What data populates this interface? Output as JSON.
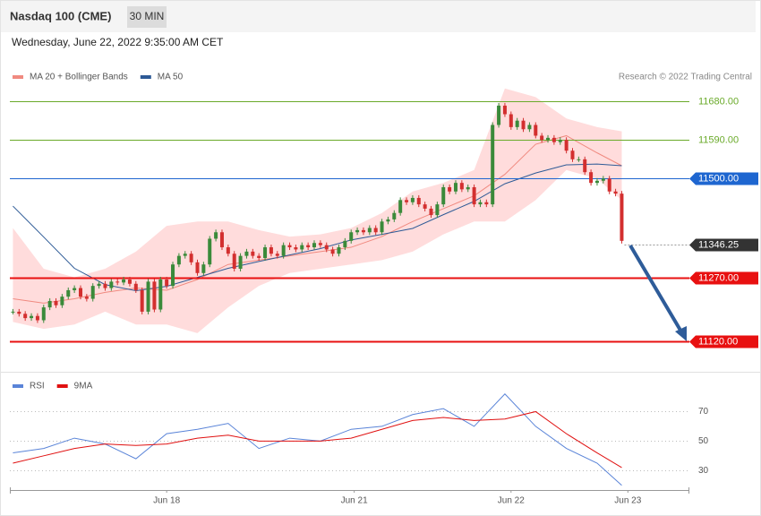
{
  "chart_data": {
    "type": "candlestick",
    "title": "Nasdaq 100 (CME)",
    "timeframe": "30 MIN",
    "subtitle": "Wednesday, June 22, 2022 9:35:00 AM CET",
    "credit": "Research © 2022 Trading Central",
    "close": [
      11190,
      11185,
      11175,
      11180,
      11170,
      11200,
      11215,
      11205,
      11225,
      11240,
      11245,
      11225,
      11220,
      11250,
      11255,
      11245,
      11260,
      11258,
      11265,
      11255,
      11240,
      11190,
      11260,
      11195,
      11265,
      11250,
      11300,
      11320,
      11325,
      11305,
      11280,
      11300,
      11360,
      11375,
      11340,
      11325,
      11290,
      11320,
      11330,
      11320,
      11315,
      11340,
      11325,
      11320,
      11345,
      11340,
      11335,
      11345,
      11340,
      11350,
      11345,
      11335,
      11325,
      11340,
      11355,
      11375,
      11380,
      11375,
      11385,
      11375,
      11400,
      11405,
      11420,
      11450,
      11445,
      11455,
      11440,
      11430,
      11415,
      11440,
      11480,
      11470,
      11490,
      11475,
      11480,
      11440,
      11445,
      11440,
      11625,
      11670,
      11650,
      11620,
      11635,
      11615,
      11625,
      11600,
      11590,
      11595,
      11585,
      11590,
      11565,
      11545,
      11545,
      11515,
      11490,
      11495,
      11500,
      11470,
      11465,
      11355
    ],
    "up_color": "#3a8a3a",
    "down_color": "#d32f2f",
    "xlim": [
      -0.5,
      110
    ],
    "xticks": [
      {
        "value": 25,
        "label": "Jun 18"
      },
      {
        "value": 55.5,
        "label": "Jun 21"
      },
      {
        "value": 81,
        "label": "Jun 22"
      },
      {
        "value": 100,
        "label": "Jun 23"
      }
    ],
    "ylim": [
      11050,
      11770
    ],
    "levels": [
      {
        "value": 11680,
        "label": "11680.00",
        "color": "#6aaa2a",
        "style": "solid",
        "tag": false
      },
      {
        "value": 11590,
        "label": "11590.00",
        "color": "#6aaa2a",
        "style": "solid",
        "tag": false
      },
      {
        "value": 11500,
        "label": "11500.00",
        "color": "#1e66d0",
        "style": "solid",
        "tag": true
      },
      {
        "value": 11346.25,
        "label": "11346.25",
        "color": "#333333",
        "style": "dotted",
        "tag": true
      },
      {
        "value": 11270,
        "label": "11270.00",
        "color": "#e81010",
        "style": "solid",
        "tag": true
      },
      {
        "value": 11120,
        "label": "11120.00",
        "color": "#e81010",
        "style": "solid",
        "tag": true
      }
    ],
    "overlays": [
      {
        "name": "MA 20 + Bollinger Bands",
        "color": "#f08a80",
        "band_color": "#ffdcdc",
        "x": [
          0,
          5,
          10,
          15,
          20,
          25,
          30,
          35,
          40,
          45,
          50,
          55,
          60,
          65,
          70,
          75,
          80,
          85,
          90,
          95,
          99
        ],
        "values": [
          11220,
          11210,
          11220,
          11235,
          11245,
          11240,
          11265,
          11300,
          11310,
          11320,
          11330,
          11340,
          11365,
          11400,
          11430,
          11460,
          11510,
          11580,
          11600,
          11560,
          11530
        ],
        "upper": [
          11385,
          11290,
          11270,
          11290,
          11330,
          11390,
          11400,
          11400,
          11380,
          11365,
          11370,
          11385,
          11420,
          11470,
          11490,
          11520,
          11710,
          11690,
          11640,
          11620,
          11610
        ],
        "lower": [
          11166,
          11150,
          11160,
          11190,
          11160,
          11160,
          11140,
          11200,
          11250,
          11280,
          11290,
          11300,
          11310,
          11330,
          11370,
          11400,
          11400,
          11450,
          11520,
          11500,
          11450
        ]
      },
      {
        "name": "MA 50",
        "color": "#2d5a96",
        "x": [
          0,
          5,
          10,
          15,
          20,
          25,
          30,
          35,
          40,
          45,
          50,
          55,
          60,
          65,
          70,
          75,
          80,
          85,
          90,
          95,
          99
        ],
        "values": [
          11436,
          11364,
          11291,
          11253,
          11239,
          11249,
          11270,
          11291,
          11307,
          11322,
          11337,
          11357,
          11370,
          11384,
          11416,
          11447,
          11488,
          11513,
          11532,
          11534,
          11530
        ]
      }
    ],
    "rsi": {
      "ylim": [
        18,
        94
      ],
      "yticks": [
        30,
        50,
        70
      ],
      "series": [
        {
          "name": "RSI",
          "color": "#5a84d8",
          "x": [
            0,
            5,
            10,
            15,
            20,
            25,
            30,
            35,
            40,
            45,
            50,
            55,
            60,
            65,
            70,
            75,
            80,
            85,
            90,
            95,
            99
          ],
          "values": [
            42,
            45,
            52,
            48,
            38,
            55,
            58,
            62,
            45,
            52,
            50,
            58,
            60,
            68,
            72,
            60,
            82,
            60,
            45,
            35,
            20
          ]
        },
        {
          "name": "9MA",
          "color": "#e01010",
          "x": [
            0,
            5,
            10,
            15,
            20,
            25,
            30,
            35,
            40,
            45,
            50,
            55,
            60,
            65,
            70,
            75,
            80,
            85,
            90,
            95,
            99
          ],
          "values": [
            35,
            40,
            45,
            48,
            47,
            48,
            52,
            54,
            50,
            50,
            50,
            52,
            58,
            64,
            66,
            64,
            65,
            70,
            55,
            42,
            32
          ]
        }
      ]
    }
  }
}
